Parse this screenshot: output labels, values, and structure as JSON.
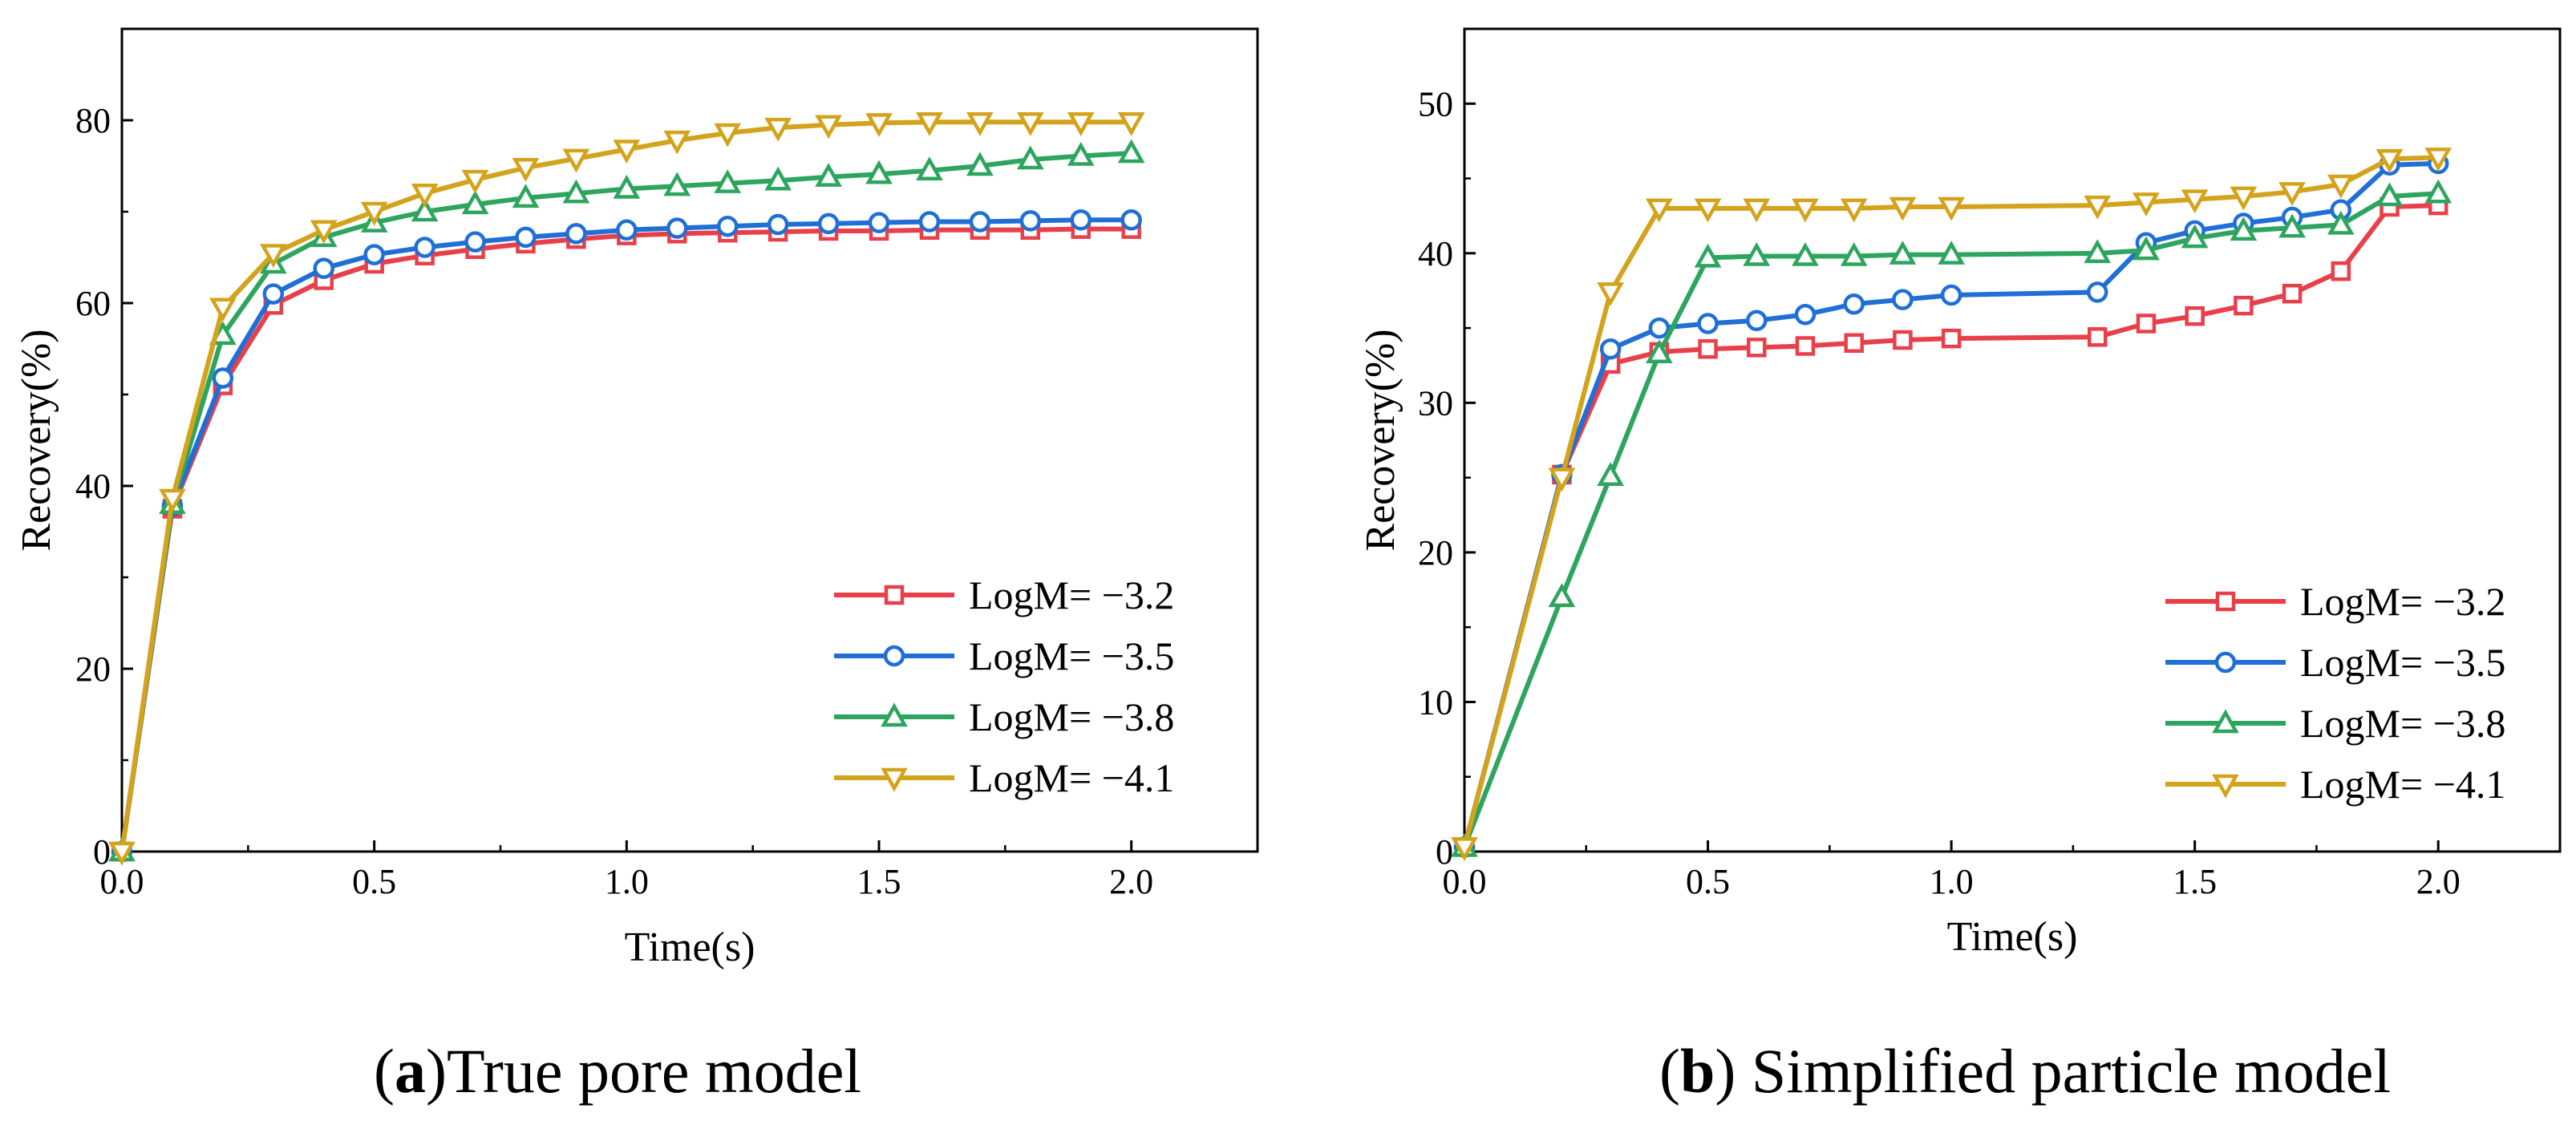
{
  "chart_data": [
    {
      "type": "line",
      "caption_prefix": "(",
      "caption_letter": "a",
      "caption_rest": ")True pore model",
      "xlabel": "Time(s)",
      "ylabel": "Recovery(%)",
      "xlim": [
        0,
        2.25
      ],
      "ylim": [
        0,
        80
      ],
      "ylim_view": [
        0,
        90
      ],
      "x_ticks": [
        "0.0",
        "0.5",
        "1.0",
        "1.5",
        "2.0"
      ],
      "y_ticks": [
        "0",
        "20",
        "40",
        "60",
        "80"
      ],
      "legend_position": "bottom-right",
      "x": [
        0,
        0.1,
        0.2,
        0.3,
        0.4,
        0.5,
        0.6,
        0.7,
        0.8,
        0.9,
        1.0,
        1.1,
        1.2,
        1.3,
        1.4,
        1.5,
        1.6,
        1.7,
        1.8,
        1.9,
        2.0
      ],
      "series": [
        {
          "name": "LogM= −3.2",
          "color": "#e8404a",
          "marker": "square",
          "values": [
            0,
            37.5,
            51,
            59.8,
            62.5,
            64.3,
            65.2,
            65.9,
            66.5,
            67.0,
            67.4,
            67.6,
            67.7,
            67.8,
            67.9,
            67.9,
            68.0,
            68.0,
            68.0,
            68.1,
            68.1
          ]
        },
        {
          "name": "LogM= −3.5",
          "color": "#1f6fd6",
          "marker": "circle",
          "values": [
            0,
            37.8,
            51.8,
            61.0,
            63.8,
            65.3,
            66.1,
            66.7,
            67.2,
            67.6,
            68.0,
            68.2,
            68.4,
            68.6,
            68.7,
            68.8,
            68.9,
            68.9,
            69.0,
            69.1,
            69.1
          ]
        },
        {
          "name": "LogM= −3.8",
          "color": "#2ea55f",
          "marker": "triangle-up",
          "values": [
            0,
            38.0,
            56.5,
            64.3,
            67.2,
            68.8,
            70.0,
            70.8,
            71.5,
            72.0,
            72.5,
            72.8,
            73.1,
            73.4,
            73.8,
            74.1,
            74.5,
            75.0,
            75.7,
            76.1,
            76.4
          ]
        },
        {
          "name": "LogM= −4.1",
          "color": "#d4a31c",
          "marker": "triangle-down",
          "values": [
            0,
            38.6,
            59.5,
            65.4,
            68.0,
            70.0,
            72.0,
            73.5,
            74.8,
            75.8,
            76.8,
            77.8,
            78.6,
            79.2,
            79.5,
            79.7,
            79.8,
            79.8,
            79.8,
            79.8,
            79.8
          ]
        }
      ]
    },
    {
      "type": "line",
      "caption_prefix": "(",
      "caption_letter": "b",
      "caption_rest": ") Simplified particle model",
      "xlabel": "Time(s)",
      "ylabel": "Recovery(%)",
      "xlim": [
        0,
        2.25
      ],
      "ylim": [
        0,
        50
      ],
      "ylim_view": [
        0,
        55
      ],
      "x_ticks": [
        "0.0",
        "0.5",
        "1.0",
        "1.5",
        "2.0"
      ],
      "y_ticks": [
        "0",
        "10",
        "20",
        "30",
        "40",
        "50"
      ],
      "legend_position": "bottom-right",
      "x": [
        0,
        0.2,
        0.3,
        0.4,
        0.5,
        0.6,
        0.7,
        0.8,
        0.9,
        1.0,
        1.3,
        1.4,
        1.5,
        1.6,
        1.7,
        1.8,
        1.9,
        2.0
      ],
      "series": [
        {
          "name": "LogM= −3.2",
          "color": "#e8404a",
          "marker": "square",
          "values": [
            0.3,
            25.2,
            32.6,
            33.4,
            33.6,
            33.7,
            33.8,
            34.0,
            34.2,
            34.3,
            34.4,
            35.3,
            35.8,
            36.5,
            37.3,
            38.8,
            43.1,
            43.2
          ]
        },
        {
          "name": "LogM= −3.5",
          "color": "#1f6fd6",
          "marker": "circle",
          "values": [
            0.3,
            25.2,
            33.6,
            35.0,
            35.3,
            35.5,
            35.9,
            36.6,
            36.9,
            37.2,
            37.4,
            40.7,
            41.5,
            42.0,
            42.4,
            42.9,
            45.9,
            46.0
          ]
        },
        {
          "name": "LogM= −3.8",
          "color": "#2ea55f",
          "marker": "triangle-up",
          "values": [
            0.3,
            17.0,
            25.1,
            33.3,
            39.7,
            39.8,
            39.8,
            39.8,
            39.9,
            39.9,
            40.0,
            40.2,
            41.0,
            41.5,
            41.7,
            41.9,
            43.8,
            44.0
          ]
        },
        {
          "name": "LogM= −4.1",
          "color": "#d4a31c",
          "marker": "triangle-down",
          "values": [
            0.3,
            25.0,
            37.4,
            43.0,
            43.0,
            43.0,
            43.0,
            43.0,
            43.1,
            43.1,
            43.2,
            43.4,
            43.6,
            43.8,
            44.1,
            44.6,
            46.3,
            46.4
          ]
        }
      ]
    }
  ]
}
